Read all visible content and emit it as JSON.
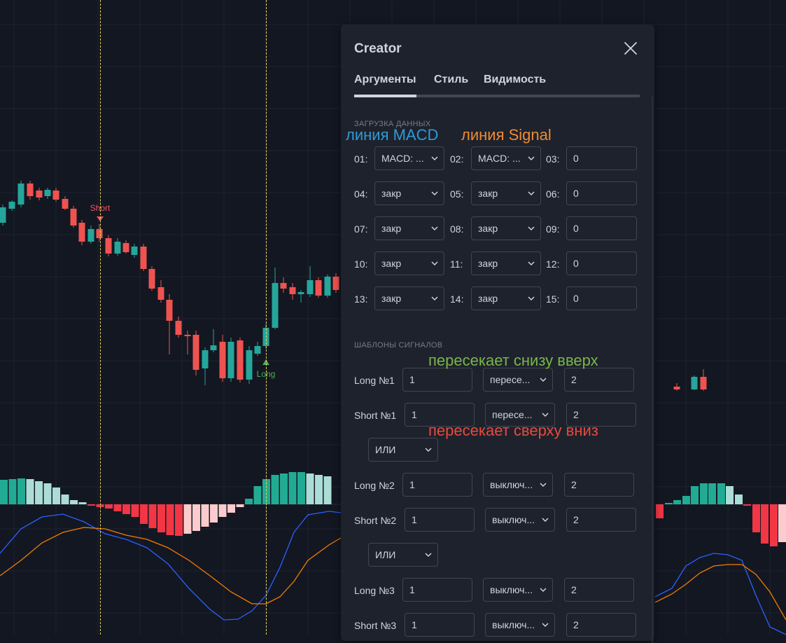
{
  "chart": {
    "markers": [
      {
        "label": "Short",
        "color": "#f7525f"
      },
      {
        "label": "Long",
        "color": "#4caf50"
      }
    ]
  },
  "dialog": {
    "title": "Creator",
    "tabs": [
      "Аргументы",
      "Стиль",
      "Видимость"
    ],
    "active_tab": "Аргументы",
    "data_section_title": "ЗАГРУЗКА ДАННЫХ",
    "data_rows": [
      [
        {
          "label": "01:",
          "value": "MACD: ..."
        },
        {
          "label": "02:",
          "value": "MACD: ..."
        },
        {
          "label": "03:",
          "value": "0"
        }
      ],
      [
        {
          "label": "04:",
          "value": "закр"
        },
        {
          "label": "05:",
          "value": "закр"
        },
        {
          "label": "06:",
          "value": "0"
        }
      ],
      [
        {
          "label": "07:",
          "value": "закр"
        },
        {
          "label": "08:",
          "value": "закр"
        },
        {
          "label": "09:",
          "value": "0"
        }
      ],
      [
        {
          "label": "10:",
          "value": "закр"
        },
        {
          "label": "11:",
          "value": "закр"
        },
        {
          "label": "12:",
          "value": "0"
        }
      ],
      [
        {
          "label": "13:",
          "value": "закр"
        },
        {
          "label": "14:",
          "value": "закр"
        },
        {
          "label": "15:",
          "value": "0"
        }
      ]
    ],
    "signals_section_title": "ШАБЛОНЫ СИГНАЛОВ",
    "signals": [
      {
        "label": "Long №1",
        "a": "1",
        "op": "пересе...",
        "b": "2"
      },
      {
        "label": "Short №1",
        "a": "1",
        "op": "пересе...",
        "b": "2"
      },
      {
        "logic": "ИЛИ"
      },
      {
        "label": "Long №2",
        "a": "1",
        "op": "выключ...",
        "b": "2"
      },
      {
        "label": "Short №2",
        "a": "1",
        "op": "выключ...",
        "b": "2"
      },
      {
        "logic": "ИЛИ"
      },
      {
        "label": "Long №3",
        "a": "1",
        "op": "выключ...",
        "b": "2"
      },
      {
        "label": "Short №3",
        "a": "1",
        "op": "выключ...",
        "b": "2"
      }
    ]
  },
  "annotations": {
    "macd_line": "линия MACD",
    "signal_line": "линия Signal",
    "cross_up": "пересекает снизу вверх",
    "cross_down": "пересекает сверху вниз"
  },
  "colors": {
    "background": "#131722",
    "panel": "#1e222d",
    "candle_up": "#26a69a",
    "candle_down": "#ef5350",
    "macd_line": "#2962ff",
    "signal_line": "#f57c00",
    "annot_macd": "#2e9ad6",
    "annot_signal": "#f28a2e",
    "annot_up": "#7ab648",
    "annot_down": "#e84a3c"
  }
}
